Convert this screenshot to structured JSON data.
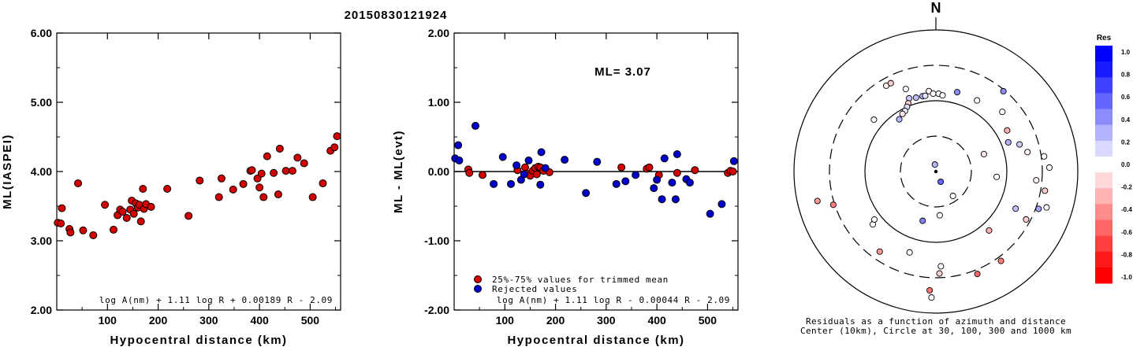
{
  "event_id": "20150830121924",
  "colors": {
    "accepted": "#d40000",
    "rejected": "#0000cc",
    "outline": "#000000"
  },
  "chart_data": [
    {
      "type": "scatter",
      "title": "",
      "xlabel": "Hypocentral distance (km)",
      "ylabel": "ML(IASPEI)",
      "xlim": [
        0,
        560
      ],
      "ylim": [
        2.0,
        6.0
      ],
      "xticks": [
        "100",
        "200",
        "300",
        "400",
        "500"
      ],
      "yticks": [
        "2.00",
        "3.00",
        "4.00",
        "5.00",
        "6.00"
      ],
      "formula": "log A(nm) + 1.11 log R + 0.00189 R - 2.09",
      "series": [
        {
          "points": [
            [
              2,
              3.26
            ],
            [
              8,
              3.25
            ],
            [
              10,
              3.47
            ],
            [
              25,
              3.17
            ],
            [
              27,
              3.12
            ],
            [
              42,
              3.83
            ],
            [
              52,
              3.15
            ],
            [
              72,
              3.08
            ],
            [
              95,
              3.52
            ],
            [
              112,
              3.16
            ],
            [
              120,
              3.37
            ],
            [
              125,
              3.45
            ],
            [
              130,
              3.42
            ],
            [
              138,
              3.33
            ],
            [
              145,
              3.45
            ],
            [
              148,
              3.58
            ],
            [
              152,
              3.39
            ],
            [
              156,
              3.54
            ],
            [
              160,
              3.48
            ],
            [
              163,
              3.52
            ],
            [
              166,
              3.28
            ],
            [
              170,
              3.75
            ],
            [
              172,
              3.46
            ],
            [
              176,
              3.53
            ],
            [
              186,
              3.49
            ],
            [
              218,
              3.75
            ],
            [
              260,
              3.36
            ],
            [
              282,
              3.87
            ],
            [
              320,
              3.63
            ],
            [
              325,
              3.9
            ],
            [
              348,
              3.74
            ],
            [
              368,
              3.82
            ],
            [
              382,
              4.01
            ],
            [
              385,
              4.02
            ],
            [
              396,
              3.9
            ],
            [
              400,
              3.77
            ],
            [
              404,
              3.97
            ],
            [
              408,
              3.63
            ],
            [
              415,
              4.22
            ],
            [
              428,
              3.98
            ],
            [
              437,
              3.67
            ],
            [
              440,
              4.33
            ],
            [
              452,
              4.01
            ],
            [
              465,
              4.01
            ],
            [
              475,
              4.2
            ],
            [
              488,
              4.12
            ],
            [
              505,
              3.63
            ],
            [
              525,
              3.83
            ],
            [
              540,
              4.3
            ],
            [
              548,
              4.35
            ],
            [
              553,
              4.51
            ]
          ]
        }
      ]
    },
    {
      "type": "scatter",
      "title": "",
      "xlabel": "Hypocentral distance (km)",
      "ylabel": "ML - ML(evt)",
      "xlim": [
        0,
        560
      ],
      "ylim": [
        -2.0,
        2.0
      ],
      "xticks": [
        "100",
        "200",
        "300",
        "400",
        "500"
      ],
      "yticks": [
        "-2.00",
        "-1.00",
        "0.00",
        "1.00",
        "2.00"
      ],
      "annotation": "ML= 3.07",
      "formula": "log A(nm) + 1.11 log R - 0.00044 R - 2.09",
      "legend": [
        "25%-75% values for trimmed mean",
        "Rejected values"
      ],
      "series": [
        {
          "name": "25%-75% values for trimmed mean",
          "points": [
            [
              28,
              0.03
            ],
            [
              30,
              -0.02
            ],
            [
              56,
              -0.05
            ],
            [
              125,
              0.02
            ],
            [
              140,
              0.06
            ],
            [
              143,
              -0.03
            ],
            [
              150,
              -0.06
            ],
            [
              155,
              0.01
            ],
            [
              160,
              0.05
            ],
            [
              163,
              -0.04
            ],
            [
              166,
              0.07
            ],
            [
              170,
              0.06
            ],
            [
              176,
              0.01
            ],
            [
              188,
              -0.01
            ],
            [
              330,
              0.06
            ],
            [
              380,
              0.04
            ],
            [
              385,
              0.06
            ],
            [
              404,
              -0.05
            ],
            [
              440,
              -0.02
            ],
            [
              475,
              0.02
            ],
            [
              540,
              -0.02
            ],
            [
              545,
              0.01
            ],
            [
              550,
              0.0
            ]
          ]
        },
        {
          "name": "Rejected values",
          "points": [
            [
              2,
              0.19
            ],
            [
              8,
              0.38
            ],
            [
              10,
              0.16
            ],
            [
              42,
              0.66
            ],
            [
              78,
              -0.18
            ],
            [
              96,
              0.21
            ],
            [
              112,
              -0.18
            ],
            [
              123,
              0.09
            ],
            [
              132,
              -0.12
            ],
            [
              138,
              -0.04
            ],
            [
              147,
              0.16
            ],
            [
              170,
              -0.19
            ],
            [
              172,
              0.28
            ],
            [
              180,
              0.05
            ],
            [
              218,
              0.17
            ],
            [
              260,
              -0.31
            ],
            [
              282,
              0.14
            ],
            [
              320,
              -0.18
            ],
            [
              338,
              -0.14
            ],
            [
              358,
              -0.05
            ],
            [
              394,
              -0.24
            ],
            [
              400,
              -0.12
            ],
            [
              410,
              -0.4
            ],
            [
              415,
              0.19
            ],
            [
              430,
              -0.16
            ],
            [
              437,
              -0.4
            ],
            [
              440,
              0.25
            ],
            [
              458,
              -0.11
            ],
            [
              465,
              -0.16
            ],
            [
              505,
              -0.61
            ],
            [
              528,
              -0.47
            ],
            [
              552,
              0.15
            ]
          ]
        }
      ]
    },
    {
      "type": "scatter",
      "title": "N",
      "xlabel": "Residuals as a function of azimuth and distance",
      "sublabel": "Center (10km), Circle at 30, 100, 300 and 1000 km",
      "colorbar": {
        "label": "Res",
        "ticks": [
          "1.0",
          "0.8",
          "0.6",
          "0.4",
          "0.2",
          "0.0",
          "-0.2",
          "-0.4",
          "-0.6",
          "-0.8",
          "-1.0"
        ],
        "colors": [
          "#0000ff",
          "#1a1aff",
          "#4040ff",
          "#6666ff",
          "#8c8cff",
          "#b3b3ff",
          "#d9d9ff",
          "#ffffff",
          "#ffd9d9",
          "#ffb3b3",
          "#ff8c8c",
          "#ff6666",
          "#ff4040",
          "#ff1a1a",
          "#ff0000"
        ]
      },
      "points": [
        {
          "az": 340,
          "dist": 0.62,
          "res": 0.0
        },
        {
          "az": 15,
          "dist": 0.58,
          "res": 0.45
        },
        {
          "az": 355,
          "dist": 0.57,
          "res": -0.05
        },
        {
          "az": 340,
          "dist": 0.55,
          "res": 0.2
        },
        {
          "az": 345,
          "dist": 0.54,
          "res": 0.25
        },
        {
          "az": 350,
          "dist": 0.54,
          "res": 0.3
        },
        {
          "az": 352,
          "dist": 0.54,
          "res": 0.1
        },
        {
          "az": 358,
          "dist": 0.55,
          "res": 0.0
        },
        {
          "az": 2,
          "dist": 0.55,
          "res": 0.02
        },
        {
          "az": 5,
          "dist": 0.54,
          "res": 0.0
        },
        {
          "az": 338,
          "dist": 0.52,
          "res": -0.2
        },
        {
          "az": 336,
          "dist": 0.5,
          "res": 0.15
        },
        {
          "az": 333,
          "dist": 0.48,
          "res": 0.05
        },
        {
          "az": 330,
          "dist": 0.47,
          "res": -0.1
        },
        {
          "az": 325,
          "dist": 0.45,
          "res": 0.3
        },
        {
          "az": 330,
          "dist": 0.7,
          "res": -0.05
        },
        {
          "az": 333,
          "dist": 0.7,
          "res": -0.2
        },
        {
          "az": 310,
          "dist": 0.57,
          "res": 0.0
        },
        {
          "az": 30,
          "dist": 0.58,
          "res": 0.0
        },
        {
          "az": 48,
          "dist": 0.63,
          "res": 0.0
        },
        {
          "az": 40,
          "dist": 0.74,
          "res": 0.45
        },
        {
          "az": 68,
          "dist": 0.55,
          "res": 0.3
        },
        {
          "az": 72,
          "dist": 0.62,
          "res": 0.2
        },
        {
          "az": 78,
          "dist": 0.66,
          "res": -0.05
        },
        {
          "az": 82,
          "dist": 0.77,
          "res": 0.0
        },
        {
          "az": 88,
          "dist": 0.8,
          "res": 0.0
        },
        {
          "az": 95,
          "dist": 0.71,
          "res": -0.05
        },
        {
          "az": 100,
          "dist": 0.78,
          "res": -0.2
        },
        {
          "az": 108,
          "dist": 0.82,
          "res": 0.0
        },
        {
          "az": 110,
          "dist": 0.77,
          "res": 0.35
        },
        {
          "az": 118,
          "dist": 0.72,
          "res": -0.2
        },
        {
          "az": 115,
          "dist": 0.62,
          "res": 0.25
        },
        {
          "az": 138,
          "dist": 0.56,
          "res": -0.3
        },
        {
          "az": 144,
          "dist": 0.78,
          "res": -0.5
        },
        {
          "az": 158,
          "dist": 0.78,
          "res": -0.6
        },
        {
          "az": 178,
          "dist": 0.72,
          "res": -0.2
        },
        {
          "az": 177,
          "dist": 0.67,
          "res": 0.0
        },
        {
          "az": 183,
          "dist": 0.84,
          "res": -0.55
        },
        {
          "az": 182,
          "dist": 0.89,
          "res": 0.0
        },
        {
          "az": 198,
          "dist": 0.6,
          "res": 0.0
        },
        {
          "az": 215,
          "dist": 0.69,
          "res": -0.4
        },
        {
          "az": 230,
          "dist": 0.58,
          "res": 0.0
        },
        {
          "az": 232,
          "dist": 0.55,
          "res": 0.0
        },
        {
          "az": 252,
          "dist": 0.76,
          "res": -0.5
        },
        {
          "az": 256,
          "dist": 0.86,
          "res": -0.4
        },
        {
          "az": 60,
          "dist": 0.58,
          "res": -0.3
        },
        {
          "az": 95,
          "dist": 0.43,
          "res": 0.0
        },
        {
          "az": 70,
          "dist": 0.36,
          "res": -0.1
        },
        {
          "az": 145,
          "dist": 0.21,
          "res": 0.0
        },
        {
          "az": 175,
          "dist": 0.31,
          "res": 0.0
        },
        {
          "az": 195,
          "dist": 0.36,
          "res": 0.5
        },
        {
          "az": 155,
          "dist": 0.08,
          "res": 0.6
        },
        {
          "az": 352,
          "dist": 0.05,
          "res": 0.3
        }
      ]
    }
  ]
}
